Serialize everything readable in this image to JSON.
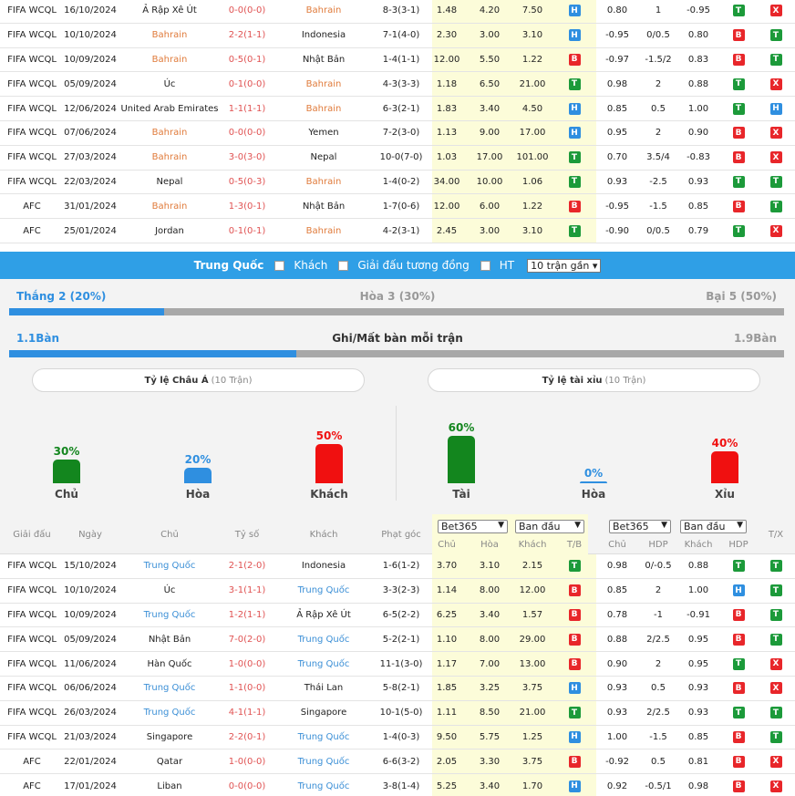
{
  "top_matches": [
    {
      "league": "FIFA WCQL",
      "date": "16/10/2024",
      "home": "Ả Rập Xê Út",
      "home_hl": false,
      "score": "0-0(0-0)",
      "away": "Bahrain",
      "away_hl": true,
      "corner": "8-3(3-1)",
      "o1": "1.48",
      "o2": "4.20",
      "o3": "7.50",
      "r1": "H",
      "h1": "0.80",
      "h2": "1",
      "h3": "-0.95",
      "r2": "T",
      "r3": "X"
    },
    {
      "league": "FIFA WCQL",
      "date": "10/10/2024",
      "home": "Bahrain",
      "home_hl": true,
      "score": "2-2(1-1)",
      "away": "Indonesia",
      "away_hl": false,
      "corner": "7-1(4-0)",
      "o1": "2.30",
      "o2": "3.00",
      "o3": "3.10",
      "r1": "H",
      "h1": "-0.95",
      "h2": "0/0.5",
      "h3": "0.80",
      "r2": "B",
      "r3": "T"
    },
    {
      "league": "FIFA WCQL",
      "date": "10/09/2024",
      "home": "Bahrain",
      "home_hl": true,
      "score": "0-5(0-1)",
      "away": "Nhật Bản",
      "away_hl": false,
      "corner": "1-4(1-1)",
      "o1": "12.00",
      "o2": "5.50",
      "o3": "1.22",
      "r1": "B",
      "h1": "-0.97",
      "h2": "-1.5/2",
      "h3": "0.83",
      "r2": "B",
      "r3": "T"
    },
    {
      "league": "FIFA WCQL",
      "date": "05/09/2024",
      "home": "Úc",
      "home_hl": false,
      "score": "0-1(0-0)",
      "away": "Bahrain",
      "away_hl": true,
      "corner": "4-3(3-3)",
      "o1": "1.18",
      "o2": "6.50",
      "o3": "21.00",
      "r1": "T",
      "h1": "0.98",
      "h2": "2",
      "h3": "0.88",
      "r2": "T",
      "r3": "X"
    },
    {
      "league": "FIFA WCQL",
      "date": "12/06/2024",
      "home": "United Arab Emirates",
      "home_hl": false,
      "score": "1-1(1-1)",
      "away": "Bahrain",
      "away_hl": true,
      "corner": "6-3(2-1)",
      "o1": "1.83",
      "o2": "3.40",
      "o3": "4.50",
      "r1": "H",
      "h1": "0.85",
      "h2": "0.5",
      "h3": "1.00",
      "r2": "T",
      "r3": "H"
    },
    {
      "league": "FIFA WCQL",
      "date": "07/06/2024",
      "home": "Bahrain",
      "home_hl": true,
      "score": "0-0(0-0)",
      "away": "Yemen",
      "away_hl": false,
      "corner": "7-2(3-0)",
      "o1": "1.13",
      "o2": "9.00",
      "o3": "17.00",
      "r1": "H",
      "h1": "0.95",
      "h2": "2",
      "h3": "0.90",
      "r2": "B",
      "r3": "X"
    },
    {
      "league": "FIFA WCQL",
      "date": "27/03/2024",
      "home": "Bahrain",
      "home_hl": true,
      "score": "3-0(3-0)",
      "away": "Nepal",
      "away_hl": false,
      "corner": "10-0(7-0)",
      "o1": "1.03",
      "o2": "17.00",
      "o3": "101.00",
      "r1": "T",
      "h1": "0.70",
      "h2": "3.5/4",
      "h3": "-0.83",
      "r2": "B",
      "r3": "X"
    },
    {
      "league": "FIFA WCQL",
      "date": "22/03/2024",
      "home": "Nepal",
      "home_hl": false,
      "score": "0-5(0-3)",
      "away": "Bahrain",
      "away_hl": true,
      "corner": "1-4(0-2)",
      "o1": "34.00",
      "o2": "10.00",
      "o3": "1.06",
      "r1": "T",
      "h1": "0.93",
      "h2": "-2.5",
      "h3": "0.93",
      "r2": "T",
      "r3": "T"
    },
    {
      "league": "AFC",
      "date": "31/01/2024",
      "home": "Bahrain",
      "home_hl": true,
      "score": "1-3(0-1)",
      "away": "Nhật Bản",
      "away_hl": false,
      "corner": "1-7(0-6)",
      "o1": "12.00",
      "o2": "6.00",
      "o3": "1.22",
      "r1": "B",
      "h1": "-0.95",
      "h2": "-1.5",
      "h3": "0.85",
      "r2": "B",
      "r3": "T"
    },
    {
      "league": "AFC",
      "date": "25/01/2024",
      "home": "Jordan",
      "home_hl": false,
      "score": "0-1(0-1)",
      "away": "Bahrain",
      "away_hl": true,
      "corner": "4-2(3-1)",
      "o1": "2.45",
      "o2": "3.00",
      "o3": "3.10",
      "r1": "T",
      "h1": "-0.90",
      "h2": "0/0.5",
      "h3": "0.79",
      "r2": "T",
      "r3": "X"
    }
  ],
  "filter": {
    "team": "Trung Quốc",
    "opt_away": "Khách",
    "opt_similar": "Giải đấu tương đồng",
    "opt_ht": "HT",
    "select": "10 trận gần"
  },
  "summary": {
    "win": "Thắng 2 (20%)",
    "draw": "Hòa 3 (30%)",
    "loss": "Bại 5 (50%)",
    "win_frac": 0.2,
    "goals_title": "Ghi/Mất bàn mỗi trận",
    "goals_for": "1.1Bàn",
    "goals_against": "1.9Bàn",
    "goals_frac": 0.37
  },
  "asia": {
    "title": "Tỷ lệ Châu Á",
    "count": "(10 Trận)",
    "items": [
      {
        "pct": "30%",
        "label": "Chủ",
        "value": 30,
        "color": "#13861e"
      },
      {
        "pct": "20%",
        "label": "Hòa",
        "value": 20,
        "color": "#2f8fe0"
      },
      {
        "pct": "50%",
        "label": "Khách",
        "value": 50,
        "color": "#f01010"
      }
    ]
  },
  "ou": {
    "title": "Tỷ lệ tài xỉu",
    "count": "(10 Trận)",
    "items": [
      {
        "pct": "60%",
        "label": "Tài",
        "value": 60,
        "color": "#13861e"
      },
      {
        "pct": "0%",
        "label": "Hòa",
        "value": 0,
        "color": "#2f8fe0"
      },
      {
        "pct": "40%",
        "label": "Xỉu",
        "value": 40,
        "color": "#f01010"
      }
    ]
  },
  "header": {
    "league": "Giải đấu",
    "date": "Ngày",
    "home": "Chủ",
    "score": "Tỷ số",
    "away": "Khách",
    "corner": "Phạt góc",
    "bookmaker": "Bet365",
    "initial": "Ban đầu",
    "bookmaker2": "Bet365",
    "initial2": "Ban đầu",
    "s1": "Chủ",
    "s2": "Hòa",
    "s3": "Khách",
    "tb": "T/B",
    "s4": "Chủ",
    "s5": "HDP",
    "s6": "Khách",
    "s7": "HDP",
    "tx": "T/X"
  },
  "bottom_matches": [
    {
      "league": "FIFA WCQL",
      "date": "15/10/2024",
      "home": "Trung Quốc",
      "home_hl": true,
      "score": "2-1(2-0)",
      "away": "Indonesia",
      "away_hl": false,
      "corner": "1-6(1-2)",
      "o1": "3.70",
      "o2": "3.10",
      "o3": "2.15",
      "r1": "T",
      "h1": "0.98",
      "h2": "0/-0.5",
      "h3": "0.88",
      "r2": "T",
      "r3": "T"
    },
    {
      "league": "FIFA WCQL",
      "date": "10/10/2024",
      "home": "Úc",
      "home_hl": false,
      "score": "3-1(1-1)",
      "away": "Trung Quốc",
      "away_hl": true,
      "corner": "3-3(2-3)",
      "o1": "1.14",
      "o2": "8.00",
      "o3": "12.00",
      "r1": "B",
      "h1": "0.85",
      "h2": "2",
      "h3": "1.00",
      "r2": "H",
      "r3": "T"
    },
    {
      "league": "FIFA WCQL",
      "date": "10/09/2024",
      "home": "Trung Quốc",
      "home_hl": true,
      "score": "1-2(1-1)",
      "away": "Ả Rập Xê Út",
      "away_hl": false,
      "corner": "6-5(2-2)",
      "o1": "6.25",
      "o2": "3.40",
      "o3": "1.57",
      "r1": "B",
      "h1": "0.78",
      "h2": "-1",
      "h3": "-0.91",
      "r2": "B",
      "r3": "T"
    },
    {
      "league": "FIFA WCQL",
      "date": "05/09/2024",
      "home": "Nhật Bản",
      "home_hl": false,
      "score": "7-0(2-0)",
      "away": "Trung Quốc",
      "away_hl": true,
      "corner": "5-2(2-1)",
      "o1": "1.10",
      "o2": "8.00",
      "o3": "29.00",
      "r1": "B",
      "h1": "0.88",
      "h2": "2/2.5",
      "h3": "0.95",
      "r2": "B",
      "r3": "T"
    },
    {
      "league": "FIFA WCQL",
      "date": "11/06/2024",
      "home": "Hàn Quốc",
      "home_hl": false,
      "score": "1-0(0-0)",
      "away": "Trung Quốc",
      "away_hl": true,
      "corner": "11-1(3-0)",
      "o1": "1.17",
      "o2": "7.00",
      "o3": "13.00",
      "r1": "B",
      "h1": "0.90",
      "h2": "2",
      "h3": "0.95",
      "r2": "T",
      "r3": "X"
    },
    {
      "league": "FIFA WCQL",
      "date": "06/06/2024",
      "home": "Trung Quốc",
      "home_hl": true,
      "score": "1-1(0-0)",
      "away": "Thái Lan",
      "away_hl": false,
      "corner": "5-8(2-1)",
      "o1": "1.85",
      "o2": "3.25",
      "o3": "3.75",
      "r1": "H",
      "h1": "0.93",
      "h2": "0.5",
      "h3": "0.93",
      "r2": "B",
      "r3": "X"
    },
    {
      "league": "FIFA WCQL",
      "date": "26/03/2024",
      "home": "Trung Quốc",
      "home_hl": true,
      "score": "4-1(1-1)",
      "away": "Singapore",
      "away_hl": false,
      "corner": "10-1(5-0)",
      "o1": "1.11",
      "o2": "8.50",
      "o3": "21.00",
      "r1": "T",
      "h1": "0.93",
      "h2": "2/2.5",
      "h3": "0.93",
      "r2": "T",
      "r3": "T"
    },
    {
      "league": "FIFA WCQL",
      "date": "21/03/2024",
      "home": "Singapore",
      "home_hl": false,
      "score": "2-2(0-1)",
      "away": "Trung Quốc",
      "away_hl": true,
      "corner": "1-4(0-3)",
      "o1": "9.50",
      "o2": "5.75",
      "o3": "1.25",
      "r1": "H",
      "h1": "1.00",
      "h2": "-1.5",
      "h3": "0.85",
      "r2": "B",
      "r3": "T"
    },
    {
      "league": "AFC",
      "date": "22/01/2024",
      "home": "Qatar",
      "home_hl": false,
      "score": "1-0(0-0)",
      "away": "Trung Quốc",
      "away_hl": true,
      "corner": "6-6(3-2)",
      "o1": "2.05",
      "o2": "3.30",
      "o3": "3.75",
      "r1": "B",
      "h1": "-0.92",
      "h2": "0.5",
      "h3": "0.81",
      "r2": "B",
      "r3": "X"
    },
    {
      "league": "AFC",
      "date": "17/01/2024",
      "home": "Liban",
      "home_hl": false,
      "score": "0-0(0-0)",
      "away": "Trung Quốc",
      "away_hl": true,
      "corner": "3-8(1-4)",
      "o1": "5.25",
      "o2": "3.40",
      "o3": "1.70",
      "r1": "H",
      "h1": "0.92",
      "h2": "-0.5/1",
      "h3": "0.98",
      "r2": "B",
      "r3": "X"
    }
  ]
}
